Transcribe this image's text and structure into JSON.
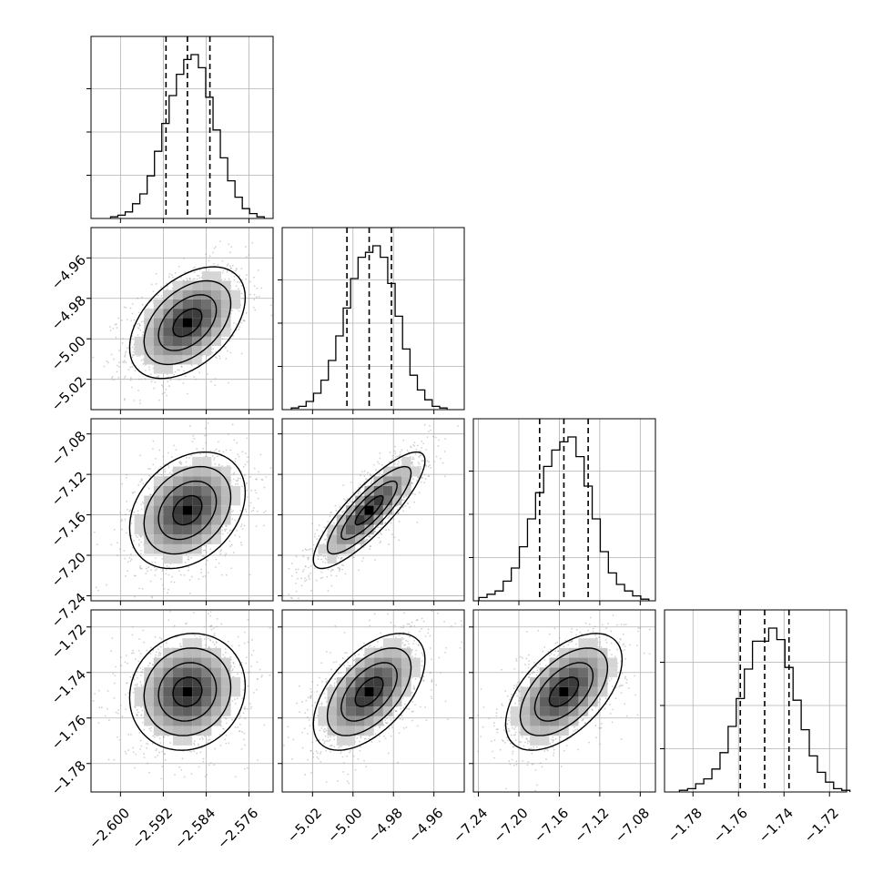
{
  "chart_data": {
    "type": "corner",
    "grid": true,
    "parameters": [
      {
        "range": [
          -2.6055,
          -2.5715
        ],
        "ticks": [
          -2.6,
          -2.592,
          -2.584,
          -2.576
        ],
        "tick_labels": [
          "−2.600",
          "−2.592",
          "−2.584",
          "−2.576"
        ],
        "quantiles": [
          -2.5915,
          -2.5875,
          -2.5833
        ],
        "hist": [
          0.01,
          0.02,
          0.04,
          0.09,
          0.15,
          0.26,
          0.41,
          0.58,
          0.75,
          0.88,
          0.97,
          1.0,
          0.92,
          0.74,
          0.54,
          0.37,
          0.23,
          0.13,
          0.06,
          0.03,
          0.01
        ]
      },
      {
        "range": [
          -5.035,
          -4.945
        ],
        "ticks": [
          -5.02,
          -5.0,
          -4.98,
          -4.96
        ],
        "tick_labels": [
          "−5.02",
          "−5.00",
          "−4.98",
          "−4.96"
        ],
        "quantiles": [
          -5.003,
          -4.992,
          -4.981
        ],
        "hist": [
          0.01,
          0.02,
          0.05,
          0.1,
          0.18,
          0.3,
          0.45,
          0.62,
          0.8,
          0.93,
          0.96,
          1.0,
          0.93,
          0.77,
          0.57,
          0.37,
          0.21,
          0.12,
          0.06,
          0.02,
          0.01
        ]
      },
      {
        "range": [
          -7.245,
          -7.065
        ],
        "ticks": [
          -7.24,
          -7.2,
          -7.16,
          -7.12,
          -7.08
        ],
        "tick_labels": [
          "−7.24",
          "−7.20",
          "−7.16",
          "−7.12",
          "−7.08"
        ],
        "quantiles": [
          -7.1795,
          -7.1555,
          -7.1315
        ],
        "hist": [
          0.02,
          0.04,
          0.06,
          0.12,
          0.2,
          0.33,
          0.5,
          0.66,
          0.82,
          0.92,
          0.97,
          1.0,
          0.88,
          0.7,
          0.5,
          0.3,
          0.17,
          0.1,
          0.06,
          0.03,
          0.01
        ]
      },
      {
        "range": [
          -1.7925,
          -1.7125
        ],
        "ticks": [
          -1.78,
          -1.76,
          -1.74,
          -1.72
        ],
        "tick_labels": [
          "−1.78",
          "−1.76",
          "−1.74",
          "−1.72"
        ],
        "quantiles": [
          -1.7592,
          -1.7485,
          -1.7378
        ],
        "hist": [
          0.01,
          0.02,
          0.05,
          0.08,
          0.14,
          0.24,
          0.4,
          0.57,
          0.75,
          0.92,
          0.92,
          1.0,
          0.93,
          0.76,
          0.56,
          0.38,
          0.22,
          0.12,
          0.06,
          0.02,
          0.01
        ]
      }
    ],
    "pairs": [
      {
        "x": 0,
        "y": 1,
        "mean": [
          -2.5875,
          -4.992
        ],
        "sd": [
          0.0045,
          0.0115
        ],
        "rho": 0.45,
        "dx": 0.0005,
        "dy": 0.002
      },
      {
        "x": 0,
        "y": 2,
        "mean": [
          -2.5875,
          -7.1555
        ],
        "sd": [
          0.0045,
          0.024
        ],
        "rho": 0.3,
        "dx": 0.0005,
        "dy": 0.004
      },
      {
        "x": 1,
        "y": 2,
        "mean": [
          -4.992,
          -7.1555
        ],
        "sd": [
          0.0115,
          0.024
        ],
        "rho": 0.85,
        "dx": 0.002,
        "dy": 0.004
      },
      {
        "x": 0,
        "y": 3,
        "mean": [
          -2.5875,
          -1.7485
        ],
        "sd": [
          0.0045,
          0.0107
        ],
        "rho": 0.1,
        "dx": 0.0005,
        "dy": 0.002
      },
      {
        "x": 1,
        "y": 3,
        "mean": [
          -4.992,
          -1.7485
        ],
        "sd": [
          0.0115,
          0.0107
        ],
        "rho": 0.55,
        "dx": 0.002,
        "dy": 0.002
      },
      {
        "x": 2,
        "y": 3,
        "mean": [
          -7.1555,
          -1.7485
        ],
        "sd": [
          0.024,
          0.0107
        ],
        "rho": 0.55,
        "dx": 0.004,
        "dy": 0.002
      }
    ]
  }
}
